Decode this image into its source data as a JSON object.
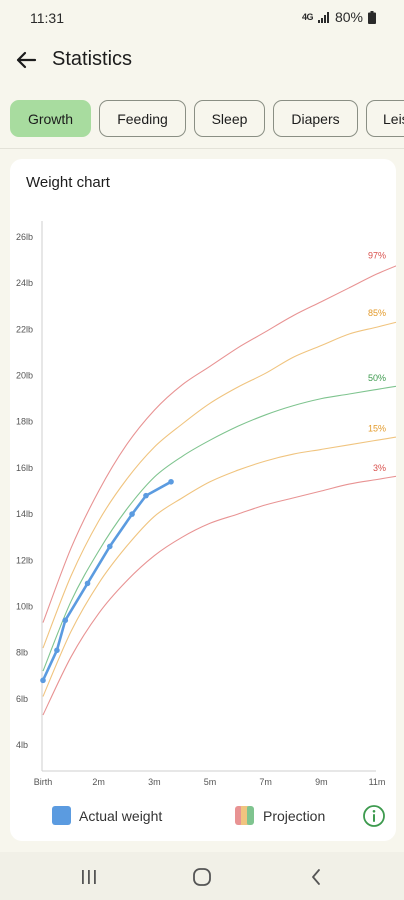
{
  "status_bar": {
    "time": "11:31",
    "network": "4G",
    "battery": "80%"
  },
  "app_bar": {
    "title": "Statistics"
  },
  "tabs": [
    {
      "label": "Growth",
      "active": true
    },
    {
      "label": "Feeding",
      "active": false
    },
    {
      "label": "Sleep",
      "active": false
    },
    {
      "label": "Diapers",
      "active": false
    },
    {
      "label": "Leis",
      "active": false
    }
  ],
  "card": {
    "title": "Weight chart"
  },
  "legend": {
    "actual": "Actual weight",
    "projection": "Projection"
  },
  "colors": {
    "actual": "#5b9be0",
    "p97": "#e89393",
    "p85": "#f0c47f",
    "p50": "#7fc48f",
    "p15": "#f0c47f",
    "p3": "#e89393",
    "p97_label": "#d9504c",
    "p85_label": "#e39a2a",
    "p50_label": "#3d9a4e",
    "p15_label": "#e39a2a",
    "p3_label": "#d9504c",
    "info": "#3d9a4e"
  },
  "chart_data": {
    "type": "line",
    "title": "Weight chart",
    "x_unit": "months",
    "xlim": [
      0,
      11
    ],
    "ylim": [
      3,
      27
    ],
    "x_ticks": [
      {
        "value": 0,
        "label": "Birth"
      },
      {
        "value": 1,
        "label": "2m"
      },
      {
        "value": 2,
        "label": "3m"
      },
      {
        "value": 3,
        "label": "5m"
      },
      {
        "value": 4,
        "label": "7m"
      },
      {
        "value": 5,
        "label": "9m"
      },
      {
        "value": 6,
        "label": "11m"
      }
    ],
    "y_ticks": [
      {
        "value": 4,
        "label": "4lb"
      },
      {
        "value": 6,
        "label": "6lb"
      },
      {
        "value": 8,
        "label": "8lb"
      },
      {
        "value": 10,
        "label": "10lb"
      },
      {
        "value": 12,
        "label": "12lb"
      },
      {
        "value": 14,
        "label": "14lb"
      },
      {
        "value": 16,
        "label": "16lb"
      },
      {
        "value": 18,
        "label": "18lb"
      },
      {
        "value": 20,
        "label": "20lb"
      },
      {
        "value": 22,
        "label": "22lb"
      },
      {
        "value": 24,
        "label": "24lb"
      },
      {
        "value": 26,
        "label": "26lb"
      }
    ],
    "series": [
      {
        "name": "97%",
        "role": "p97",
        "points": [
          [
            0,
            9.3
          ],
          [
            0.5,
            12.5
          ],
          [
            1,
            15
          ],
          [
            1.5,
            17
          ],
          [
            2,
            18.5
          ],
          [
            2.5,
            19.6
          ],
          [
            3,
            20.4
          ],
          [
            3.5,
            21.2
          ],
          [
            4,
            21.9
          ],
          [
            4.5,
            22.6
          ],
          [
            5,
            23.2
          ],
          [
            5.5,
            23.8
          ],
          [
            6,
            24.4
          ],
          [
            6.5,
            24.9
          ]
        ]
      },
      {
        "name": "85%",
        "role": "p85",
        "points": [
          [
            0,
            8.2
          ],
          [
            0.5,
            11.3
          ],
          [
            1,
            13.7
          ],
          [
            1.5,
            15.5
          ],
          [
            2,
            16.9
          ],
          [
            2.5,
            17.9
          ],
          [
            3,
            18.8
          ],
          [
            3.5,
            19.5
          ],
          [
            4,
            20.1
          ],
          [
            4.5,
            20.8
          ],
          [
            5,
            21.3
          ],
          [
            5.5,
            21.8
          ],
          [
            6,
            22.1
          ],
          [
            6.5,
            22.4
          ]
        ]
      },
      {
        "name": "50%",
        "role": "p50",
        "points": [
          [
            0,
            7.2
          ],
          [
            0.5,
            10.2
          ],
          [
            1,
            12.4
          ],
          [
            1.5,
            14.2
          ],
          [
            2,
            15.6
          ],
          [
            2.5,
            16.5
          ],
          [
            3,
            17.2
          ],
          [
            3.5,
            17.8
          ],
          [
            4,
            18.3
          ],
          [
            4.5,
            18.7
          ],
          [
            5,
            19
          ],
          [
            5.5,
            19.2
          ],
          [
            6,
            19.4
          ],
          [
            6.5,
            19.6
          ]
        ]
      },
      {
        "name": "15%",
        "role": "p15",
        "points": [
          [
            0,
            6.1
          ],
          [
            0.5,
            8.9
          ],
          [
            1,
            11
          ],
          [
            1.5,
            12.6
          ],
          [
            2,
            13.9
          ],
          [
            2.5,
            14.7
          ],
          [
            3,
            15.4
          ],
          [
            3.5,
            15.9
          ],
          [
            4,
            16.3
          ],
          [
            4.5,
            16.6
          ],
          [
            5,
            16.8
          ],
          [
            5.5,
            17
          ],
          [
            6,
            17.2
          ],
          [
            6.5,
            17.4
          ]
        ]
      },
      {
        "name": "3%",
        "role": "p3",
        "points": [
          [
            0,
            5.3
          ],
          [
            0.5,
            7.8
          ],
          [
            1,
            9.7
          ],
          [
            1.5,
            11.1
          ],
          [
            2,
            12.2
          ],
          [
            2.5,
            13
          ],
          [
            3,
            13.6
          ],
          [
            3.5,
            14
          ],
          [
            4,
            14.4
          ],
          [
            4.5,
            14.7
          ],
          [
            5,
            15
          ],
          [
            5.5,
            15.3
          ],
          [
            6,
            15.5
          ],
          [
            6.5,
            15.7
          ]
        ]
      },
      {
        "name": "Actual weight",
        "role": "actual",
        "points": [
          [
            0,
            6.8
          ],
          [
            0.25,
            8.1
          ],
          [
            0.4,
            9.4
          ],
          [
            0.8,
            11
          ],
          [
            1.2,
            12.6
          ],
          [
            1.6,
            14
          ],
          [
            1.85,
            14.8
          ],
          [
            2.3,
            15.4
          ]
        ]
      }
    ],
    "legend": [
      "Actual weight",
      "Projection"
    ]
  }
}
